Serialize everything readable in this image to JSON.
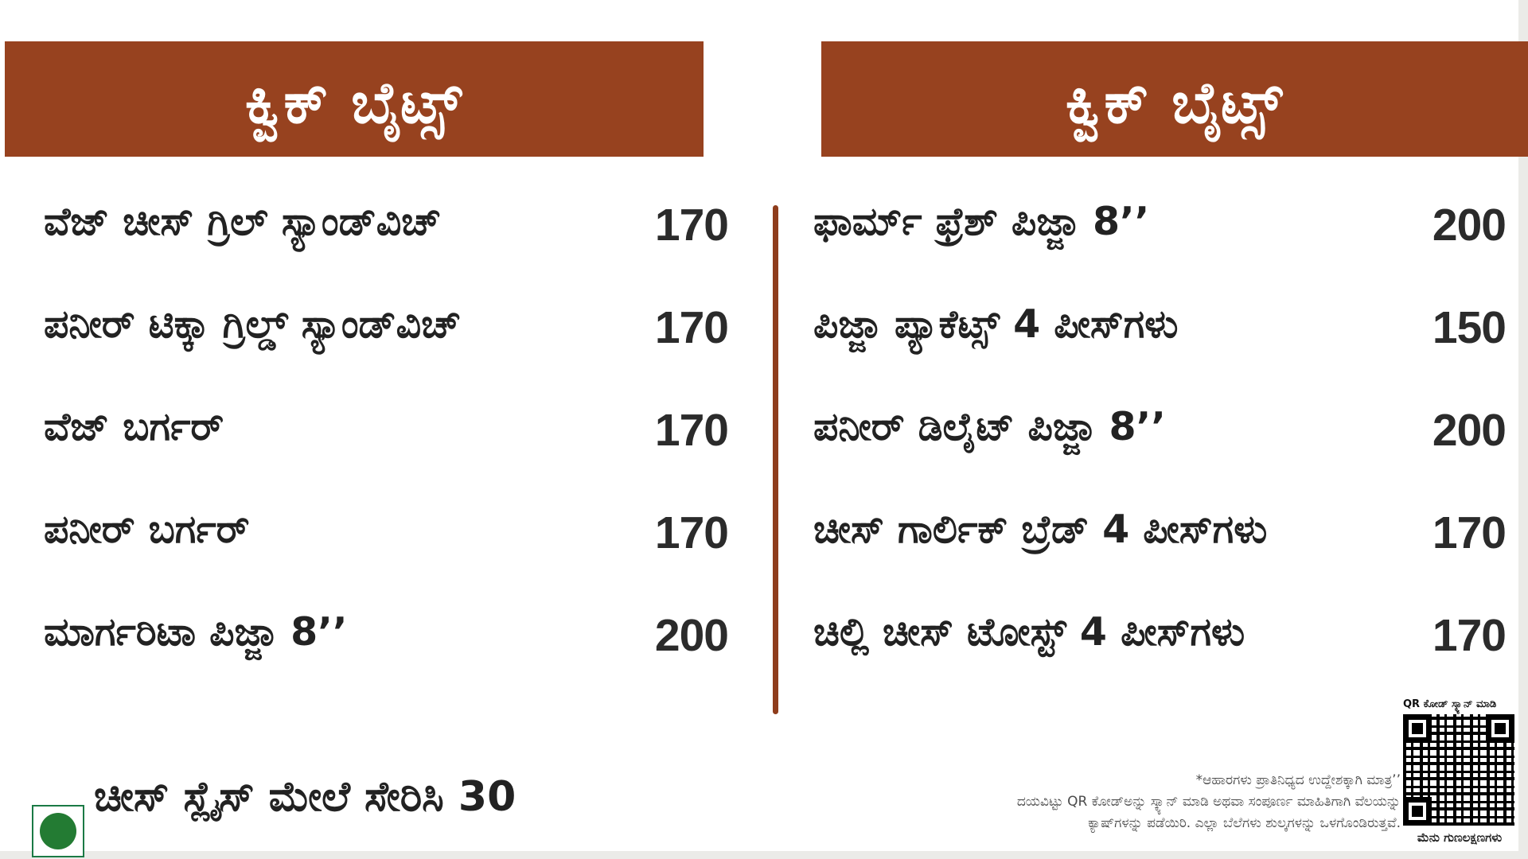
{
  "page": {
    "background": "#ffffff",
    "accent_brown": "#97421F",
    "text_color": "#222222",
    "veg_green": "#237B33"
  },
  "left_panel": {
    "header": "ಕ್ವಿಕ್ ಬೈಟ್ಸ್",
    "items": [
      {
        "name": "ವೆಜ್ ಚೀಸ್ ಗ್ರಿಲ್ ಸ್ಯಾಂಡ್‌ವಿಚ್",
        "price": "170"
      },
      {
        "name": "ಪನೀರ್ ಟಿಕ್ಕಾ ಗ್ರಿಲ್ಡ್ ಸ್ಯಾಂಡ್‌ವಿಚ್",
        "price": "170"
      },
      {
        "name": "ವೆಜ್ ಬರ್ಗರ್",
        "price": "170"
      },
      {
        "name": "ಪನೀರ್ ಬರ್ಗರ್",
        "price": "170"
      },
      {
        "name": "ಮಾರ್ಗರಿಟಾ ಪಿಜ್ಜಾ 8’’",
        "price": "200"
      }
    ],
    "footnote": "ಚೀಸ್ ಸ್ಲೈಸ್ ಮೇಲೆ ಸೇರಿಸಿ 30"
  },
  "right_panel": {
    "header": "ಕ್ವಿಕ್ ಬೈಟ್ಸ್",
    "items": [
      {
        "name": "ಫಾರ್ಮ್ ಫ್ರೆಶ್ ಪಿಜ್ಜಾ 8’’",
        "price": "200"
      },
      {
        "name": "ಪಿಜ್ಜಾ ಪ್ಯಾಕೆಟ್ಸ್ 4 ಪೀಸ್‌ಗಳು",
        "price": "150"
      },
      {
        "name": "ಪನೀರ್ ಡಿಲೈಟ್ ಪಿಜ್ಜಾ 8’’",
        "price": "200"
      },
      {
        "name": "ಚೀಸ್ ಗಾರ್ಲಿಕ್ ಬ್ರೆಡ್ 4 ಪೀಸ್‌ಗಳು",
        "price": "170"
      },
      {
        "name": "ಚಿಲ್ಲಿ ಚೀಸ್ ಟೋಸ್ಟ್ 4 ಪೀಸ್‌ಗಳು",
        "price": "170"
      }
    ]
  },
  "disclaimer": {
    "line1": "*ಆಹಾರಗಳು ಪ್ರಾತಿನಿಧ್ಯದ ಉದ್ದೇಶಕ್ಕಾಗಿ ಮಾತ್ರ’’",
    "line2": "ದಯವಿಟ್ಟು QR ಕೋಡ್‌ಅನ್ನು ಸ್ಕ್ಯಾನ್ ಮಾಡಿ ಅಥವಾ ಸಂಪೂರ್ಣ ಮಾಹಿತಿಗಾಗಿ ವೆಲಯನ್ನು",
    "line3": "ಕ್ಯಾಷ್‌ಗಳನ್ನು ಪಡೆಯಿರಿ. ಎಲ್ಲಾ ಬೆಲೆಗಳು ಶುಲ್ಕಗಳನ್ನು ಒಳಗೊಂಡಿರುತ್ತವೆ."
  },
  "qr_section": {
    "top_label": "QR ಕೋಡ್ ಸ್ಕ್ಯಾನ್ ಮಾಡಿ",
    "bottom_label": "ಮೆನು ಗುಣಲಕ್ಷಣಗಳು"
  }
}
